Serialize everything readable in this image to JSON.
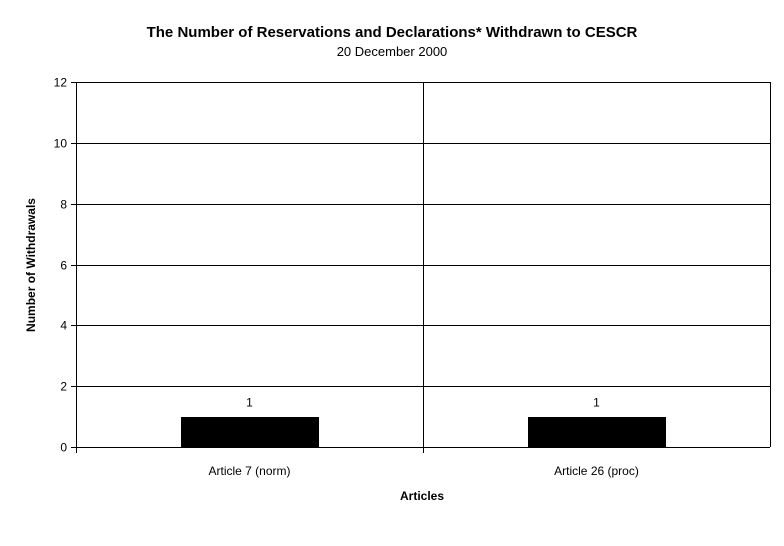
{
  "chart_data": {
    "type": "bar",
    "title": "The Number of Reservations and Declarations* Withdrawn to CESCR",
    "subtitle": "20 December 2000",
    "xlabel": "Articles",
    "ylabel": "Number of Withdrawals",
    "categories": [
      "Article 7 (norm)",
      "Article 26 (proc)"
    ],
    "values": [
      1,
      1
    ],
    "data_labels": [
      "1",
      "1"
    ],
    "ylim": [
      0,
      12
    ],
    "yticks": [
      0,
      2,
      4,
      6,
      8,
      10,
      12
    ],
    "ytick_labels": [
      "0",
      "2",
      "4",
      "6",
      "8",
      "10",
      "12"
    ],
    "grid": true,
    "bar_color": "#000000",
    "legend": "none"
  }
}
